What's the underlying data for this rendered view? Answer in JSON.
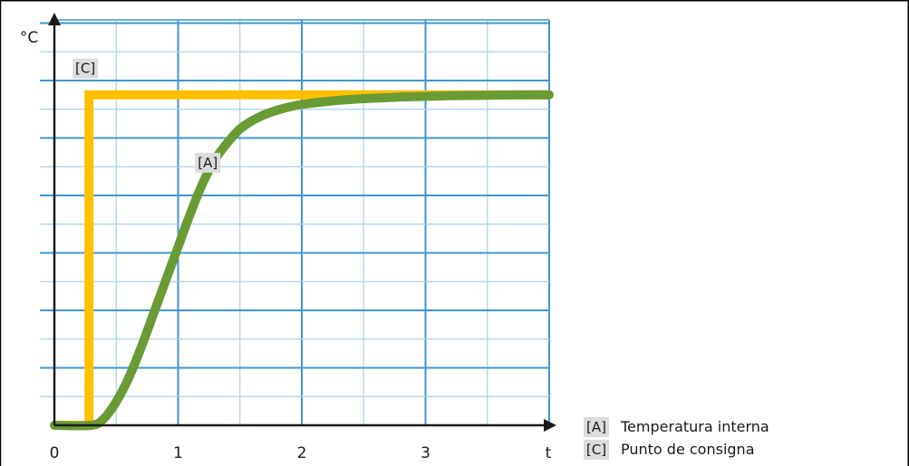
{
  "chart_data": {
    "type": "line",
    "xlabel": "t",
    "ylabel": "°C",
    "xlim": [
      0,
      4
    ],
    "x_ticks": [
      0,
      1,
      2,
      3
    ],
    "x_tick_labels": [
      "0",
      "1",
      "2",
      "3"
    ],
    "ylim": [
      0,
      100
    ],
    "grid": true,
    "series": [
      {
        "key": "A",
        "label": "[A]",
        "name": "Temperatura interna",
        "color": "#6a9a34",
        "x": [
          0,
          0.3,
          0.4,
          0.5,
          0.6,
          0.7,
          0.8,
          0.9,
          1.0,
          1.1,
          1.2,
          1.3,
          1.4,
          1.5,
          1.6,
          1.7,
          1.8,
          1.9,
          2.0,
          2.2,
          2.4,
          2.6,
          2.8,
          3.0,
          3.2,
          3.4,
          3.6,
          4.0
        ],
        "y": [
          0,
          0,
          2,
          7,
          14,
          23,
          33,
          43,
          53,
          63,
          72,
          79,
          84,
          88,
          90.5,
          92.3,
          93.6,
          94.6,
          95.3,
          96.2,
          96.8,
          97.2,
          97.5,
          97.7,
          97.9,
          98.0,
          98.1,
          98.2
        ]
      },
      {
        "key": "C",
        "label": "[C]",
        "name": "Punto de consigna",
        "color": "#ffc000",
        "x": [
          0,
          0.28,
          0.28,
          4.0
        ],
        "y": [
          0,
          0,
          98.2,
          98.2
        ]
      }
    ],
    "annotations": [
      {
        "label": "[C]",
        "x": 0.25,
        "y": 106
      },
      {
        "label": "[A]",
        "x": 1.24,
        "y": 78
      }
    ],
    "legend": {
      "position": "bottom-right",
      "items": [
        {
          "key": "[A]",
          "text": "Temperatura interna"
        },
        {
          "key": "[C]",
          "text": "Punto de consigna"
        }
      ]
    }
  }
}
